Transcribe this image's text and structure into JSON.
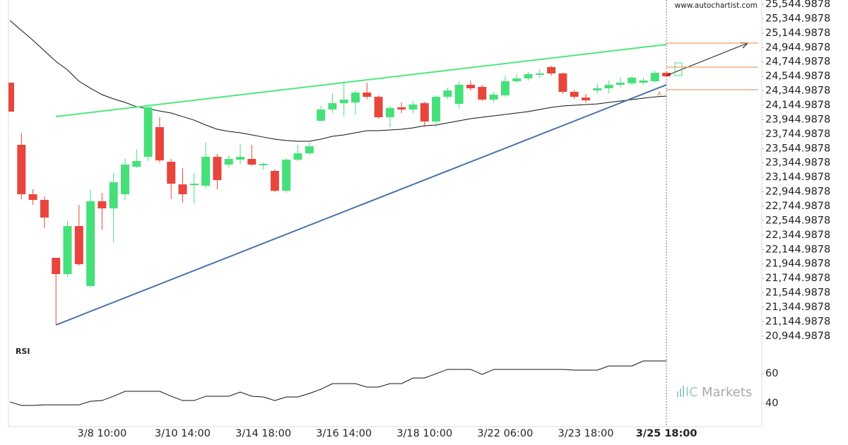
{
  "chart_data": {
    "type": "candlestick",
    "watermark": "www.autochartist.com",
    "brand": {
      "prefix": "IC",
      "name": "Markets"
    },
    "marker": "A",
    "current_index": 57,
    "up_color": "#46e07a",
    "down_color": "#e8463c",
    "categories": [
      null,
      null,
      null,
      null,
      null,
      null,
      null,
      null,
      "3/8 10:00",
      null,
      null,
      null,
      null,
      null,
      null,
      "3/10 14:00",
      null,
      null,
      null,
      null,
      null,
      null,
      "3/14 18:00",
      null,
      null,
      null,
      null,
      null,
      null,
      "3/16 14:00",
      null,
      null,
      null,
      null,
      null,
      null,
      "3/18 10:00",
      null,
      null,
      null,
      null,
      null,
      null,
      "3/22 06:00",
      null,
      null,
      null,
      null,
      null,
      null,
      "3/23 18:00",
      null,
      null,
      null,
      null,
      null,
      null,
      "3/25 18:00"
    ],
    "open": [
      24458,
      23597,
      22912,
      22833,
      22030,
      21805,
      22471,
      21639,
      22814,
      22716,
      22911,
      23293,
      23430,
      23842,
      23362,
      23048,
      23038,
      23029,
      23430,
      23323,
      23391,
      23401,
      23313,
      23235,
      22960,
      23391,
      23479,
      23930,
      24086,
      24174,
      24184,
      24321,
      24262,
      23979,
      24116,
      24086,
      24174,
      23920,
      24262,
      24164,
      24429,
      24400,
      24223,
      24282,
      24478,
      24517,
      24566,
      24674,
      24586,
      24331,
      24252,
      24350,
      24380,
      24429,
      24449,
      24458,
      24478,
      24595
    ],
    "high": [
      24458,
      23763,
      22980,
      22882,
      22030,
      22540,
      22765,
      22980,
      22931,
      23205,
      23401,
      23528,
      24135,
      23979,
      23401,
      23274,
      23205,
      23626,
      23469,
      23450,
      23607,
      23597,
      23352,
      23254,
      23411,
      23597,
      23626,
      24135,
      24311,
      24449,
      24350,
      24458,
      24282,
      24135,
      24184,
      24204,
      24194,
      24282,
      24390,
      24478,
      24488,
      24429,
      24331,
      24556,
      24576,
      24605,
      24644,
      24693,
      24595,
      24360,
      24302,
      24449,
      24488,
      24527,
      24546,
      24527,
      24625,
      24615
    ],
    "low": [
      24057,
      22843,
      22765,
      22442,
      21100,
      21766,
      21923,
      21619,
      22422,
      22246,
      22833,
      23274,
      23372,
      23352,
      22843,
      22794,
      22784,
      22990,
      22980,
      23284,
      23332,
      23303,
      23254,
      22941,
      22931,
      23372,
      23460,
      23920,
      24037,
      23988,
      24018,
      24233,
      23959,
      23842,
      24037,
      24037,
      23842,
      23842,
      24233,
      24096,
      24350,
      24204,
      24184,
      24262,
      24458,
      24488,
      24527,
      24556,
      24302,
      24233,
      24184,
      24302,
      24311,
      24390,
      24419,
      24429,
      24458,
      24527
    ],
    "close": [
      24057,
      22912,
      22833,
      22588,
      21805,
      22471,
      21942,
      22814,
      22716,
      23078,
      23323,
      23372,
      24116,
      23381,
      23058,
      22912,
      23058,
      23430,
      23107,
      23401,
      23430,
      23323,
      23333,
      22960,
      23391,
      23479,
      23577,
      24086,
      24174,
      24223,
      24321,
      24262,
      23979,
      24106,
      24086,
      24155,
      23920,
      24262,
      24350,
      24429,
      24380,
      24223,
      24292,
      24478,
      24517,
      24576,
      24586,
      24586,
      24331,
      24262,
      24213,
      24380,
      24429,
      24458,
      24527,
      24488,
      24595,
      24546
    ],
    "ylim": [
      20826,
      25604
    ],
    "yticks": [
      {
        "value": 25544.9878,
        "label": "25,544.9878"
      },
      {
        "value": 25344.9878,
        "label": "25,344.9878"
      },
      {
        "value": 25144.9878,
        "label": "25,144.9878"
      },
      {
        "value": 24944.9878,
        "label": "24,944.9878"
      },
      {
        "value": 24744.9878,
        "label": "24,744.9878"
      },
      {
        "value": 24544.9878,
        "label": "24,544.9878"
      },
      {
        "value": 24344.9878,
        "label": "24,344.9878"
      },
      {
        "value": 24144.9878,
        "label": "24,144.9878"
      },
      {
        "value": 23944.9878,
        "label": "23,944.9878"
      },
      {
        "value": 23744.9878,
        "label": "23,744.9878"
      },
      {
        "value": 23544.9878,
        "label": "23,544.9878"
      },
      {
        "value": 23344.9878,
        "label": "23,344.9878"
      },
      {
        "value": 23144.9878,
        "label": "23,144.9878"
      },
      {
        "value": 22944.9878,
        "label": "22,944.9878"
      },
      {
        "value": 22744.9878,
        "label": "22,744.9878"
      },
      {
        "value": 22544.9878,
        "label": "22,544.9878"
      },
      {
        "value": 22344.9878,
        "label": "22,344.9878"
      },
      {
        "value": 22144.9878,
        "label": "22,144.9878"
      },
      {
        "value": 21944.9878,
        "label": "21,944.9878"
      },
      {
        "value": 21744.9878,
        "label": "21,744.9878"
      },
      {
        "value": 21544.9878,
        "label": "21,544.9878"
      },
      {
        "value": 21344.9878,
        "label": "21,344.9878"
      },
      {
        "value": 21144.9878,
        "label": "21,144.9878"
      },
      {
        "value": 20944.9878,
        "label": "20,944.9878"
      }
    ],
    "moving_average": {
      "color": "#111111",
      "values": [
        25320,
        25183,
        25046,
        24899,
        24752,
        24635,
        24478,
        24380,
        24292,
        24233,
        24184,
        24125,
        24096,
        24066,
        24037,
        23988,
        23939,
        23871,
        23812,
        23783,
        23763,
        23734,
        23704,
        23675,
        23656,
        23646,
        23646,
        23675,
        23714,
        23734,
        23763,
        23793,
        23793,
        23802,
        23812,
        23832,
        23861,
        23871,
        23900,
        23930,
        23959,
        23979,
        23998,
        24018,
        24037,
        24057,
        24086,
        24116,
        24135,
        24145,
        24155,
        24164,
        24184,
        24204,
        24223,
        24243,
        24262,
        24272
      ]
    },
    "trendlines": [
      {
        "color": "#4de87c",
        "start": [
          4,
          23988
        ],
        "end": [
          57,
          24987
        ]
      },
      {
        "color": "#4a72aa",
        "start": [
          4,
          21100
        ],
        "end": [
          57,
          24429
        ]
      }
    ],
    "levels": [
      {
        "value": 25007,
        "color": "#e08a4a"
      },
      {
        "value": 24674,
        "color": "#e08a4a"
      },
      {
        "value": 24360,
        "color": "#e08a4a"
      }
    ],
    "rsi": {
      "title": "RSI",
      "color": "#111111",
      "values": [
        41.0,
        38.6,
        38.6,
        39.0,
        39.0,
        39.0,
        39.0,
        41.4,
        41.9,
        44.8,
        48.1,
        48.1,
        48.1,
        48.1,
        44.8,
        41.9,
        41.9,
        44.8,
        44.8,
        44.8,
        47.6,
        44.8,
        44.3,
        41.9,
        44.3,
        44.3,
        46.7,
        49.5,
        53.3,
        53.3,
        53.3,
        51.0,
        51.0,
        53.3,
        53.3,
        57.1,
        57.1,
        60.0,
        62.9,
        62.9,
        62.9,
        59.5,
        62.9,
        62.9,
        62.9,
        62.9,
        62.9,
        62.9,
        62.9,
        62.4,
        62.4,
        62.4,
        65.2,
        65.2,
        65.2,
        68.6,
        68.6,
        68.6
      ],
      "ylim": [
        24.3,
        78.6
      ],
      "yticks": [
        60,
        40
      ]
    }
  }
}
